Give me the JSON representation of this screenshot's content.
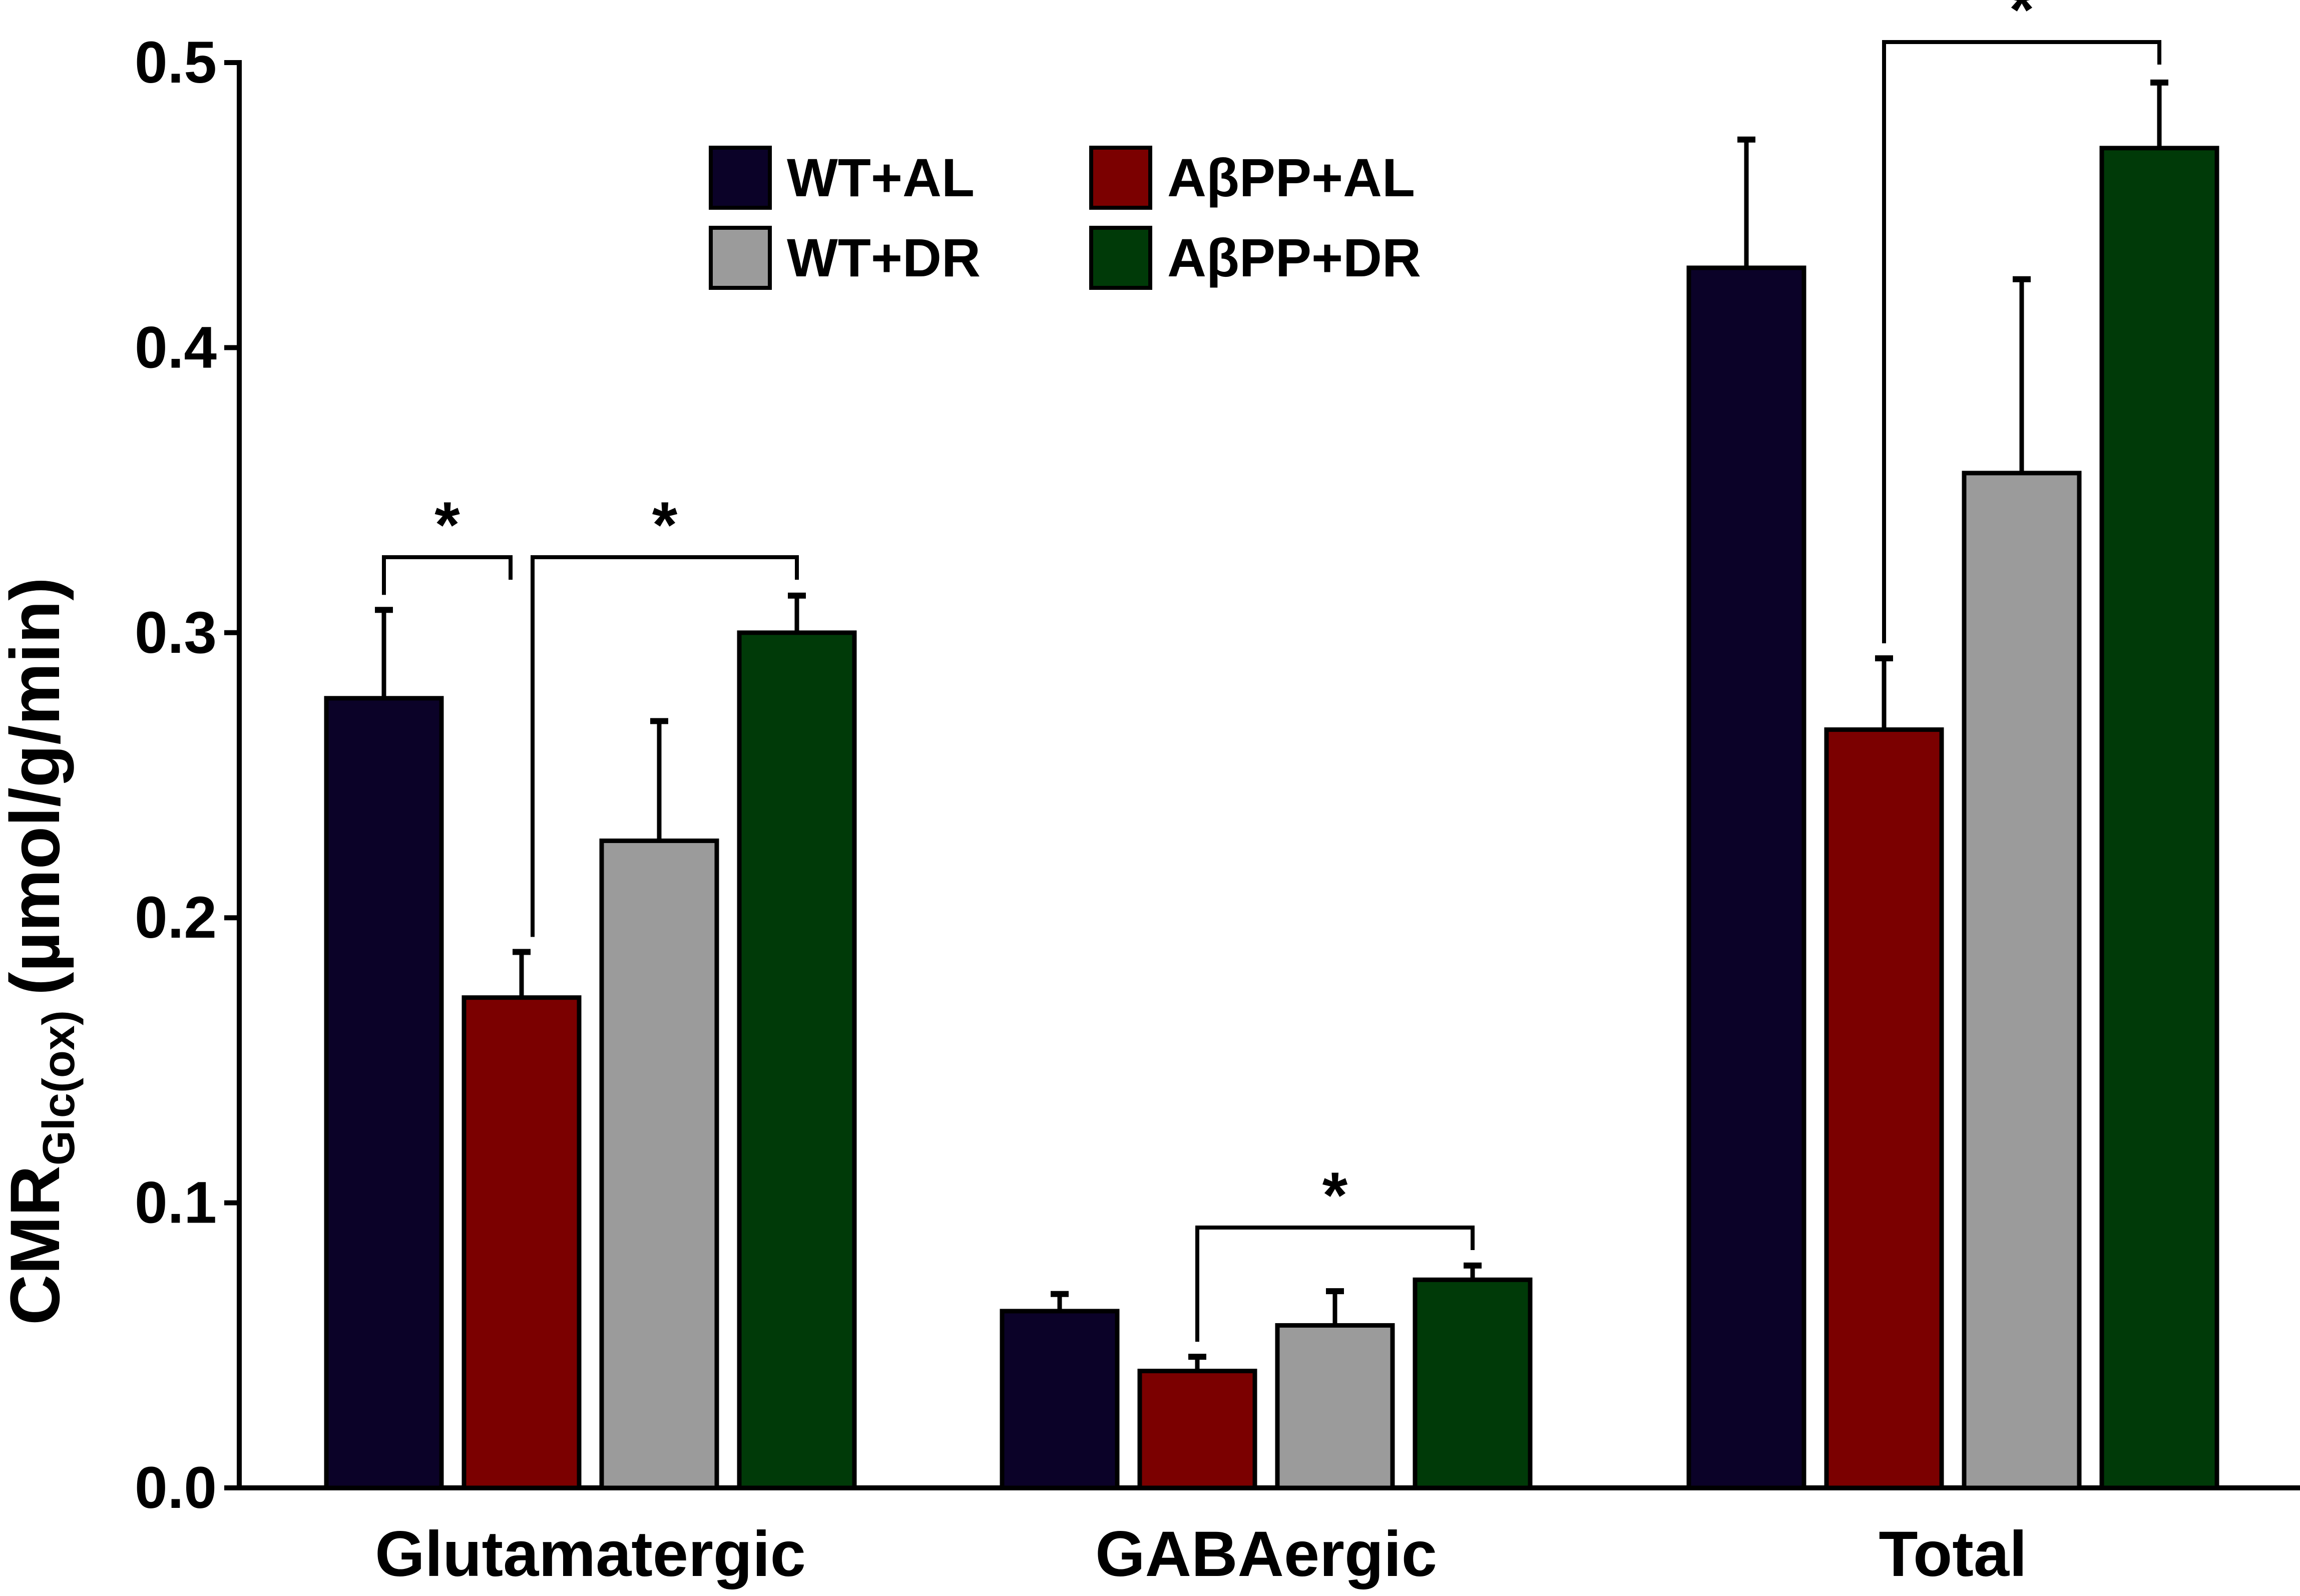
{
  "chart_data": {
    "type": "bar",
    "title": "",
    "xlabel": "",
    "ylabel": {
      "main": "CMR",
      "subscript": "Glc(ox)",
      "units": "(µmol/g/min)"
    },
    "ylim": [
      0,
      0.5
    ],
    "yticks": [
      "0.0",
      "0.1",
      "0.2",
      "0.3",
      "0.4",
      "0.5"
    ],
    "categories": [
      "Glutamatergic",
      "GABAergic",
      "Total"
    ],
    "series": [
      {
        "name": "WT+AL",
        "color": "#0b0228",
        "values": [
          0.277,
          0.062,
          0.428
        ],
        "errors": [
          0.031,
          0.006,
          0.045
        ]
      },
      {
        "name": "AβPP+AL",
        "color": "#7b0000",
        "values": [
          0.172,
          0.041,
          0.266
        ],
        "errors": [
          0.016,
          0.005,
          0.025
        ]
      },
      {
        "name": "WT+DR",
        "color": "#9b9b9b",
        "values": [
          0.227,
          0.057,
          0.356
        ],
        "errors": [
          0.042,
          0.012,
          0.068
        ]
      },
      {
        "name": "AβPP+DR",
        "color": "#003a08",
        "values": [
          0.3,
          0.073,
          0.47
        ],
        "errors": [
          0.013,
          0.005,
          0.023
        ]
      }
    ],
    "significance": [
      {
        "category": 0,
        "from_series": 0,
        "to_series": 1,
        "label": "*"
      },
      {
        "category": 0,
        "from_series": 1,
        "to_series": 3,
        "label": "*"
      },
      {
        "category": 1,
        "from_series": 1,
        "to_series": 3,
        "label": "*"
      },
      {
        "category": 2,
        "from_series": 1,
        "to_series": 3,
        "label": "*"
      }
    ],
    "legend": {
      "position": "top-center",
      "columns": 2
    }
  }
}
